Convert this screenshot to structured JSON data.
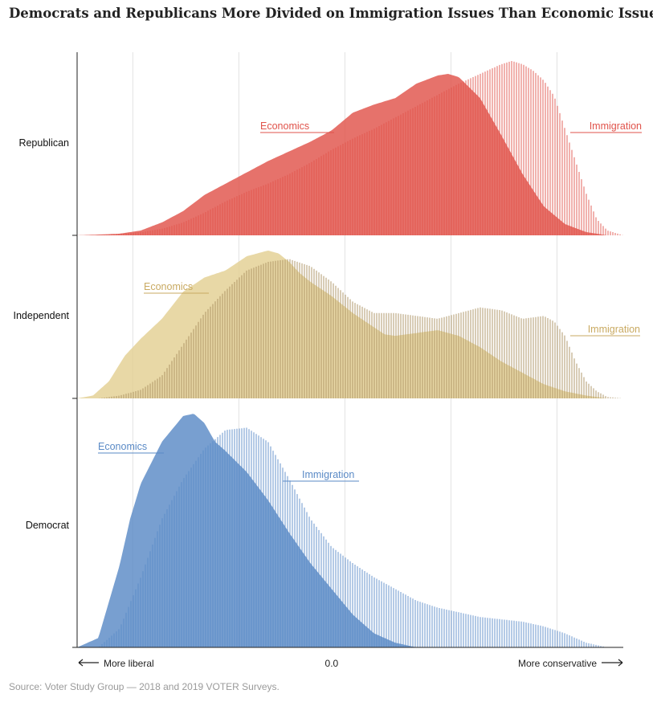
{
  "title": "Democrats and Republicans More Divided on Immigration Issues Than Economic Issues",
  "source": "Source: Voter Study Group — 2018 and 2019 VOTER Surveys.",
  "chart_data": {
    "type": "area",
    "xlabel_left": "More liberal",
    "xlabel_right": "More conservative",
    "xlim": [
      -2.4,
      2.75
    ],
    "x_tick_labels": [
      {
        "x": 0.0,
        "label": "0.0"
      }
    ],
    "gridlines_x": [
      -1.875,
      -0.875,
      0.125,
      1.125,
      2.125
    ],
    "grid": true,
    "panels": [
      {
        "group": "Republican",
        "color": "#e0534b",
        "series": [
          {
            "name": "Economics",
            "style": "filled",
            "x": [
              -2.4,
              -2.0,
              -1.8,
              -1.6,
              -1.4,
              -1.2,
              -1.0,
              -0.8,
              -0.6,
              -0.4,
              -0.2,
              0.0,
              0.2,
              0.4,
              0.6,
              0.8,
              1.0,
              1.1,
              1.2,
              1.4,
              1.6,
              1.8,
              2.0,
              2.2,
              2.4,
              2.6,
              2.75
            ],
            "y": [
              0.0,
              0.01,
              0.03,
              0.08,
              0.15,
              0.25,
              0.32,
              0.39,
              0.46,
              0.52,
              0.58,
              0.65,
              0.76,
              0.81,
              0.85,
              0.94,
              0.99,
              1.0,
              0.98,
              0.85,
              0.62,
              0.38,
              0.18,
              0.07,
              0.02,
              0.0,
              0.0
            ]
          },
          {
            "name": "Immigration",
            "style": "hatched",
            "x": [
              -2.4,
              -2.2,
              -2.0,
              -1.8,
              -1.6,
              -1.4,
              -1.2,
              -1.0,
              -0.8,
              -0.6,
              -0.4,
              -0.2,
              0.0,
              0.2,
              0.4,
              0.6,
              0.8,
              1.0,
              1.2,
              1.4,
              1.6,
              1.7,
              1.8,
              1.9,
              2.0,
              2.1,
              2.2,
              2.4,
              2.5,
              2.6,
              2.75
            ],
            "y": [
              0.0,
              0.0,
              0.01,
              0.02,
              0.04,
              0.08,
              0.14,
              0.21,
              0.27,
              0.32,
              0.38,
              0.45,
              0.53,
              0.6,
              0.66,
              0.73,
              0.8,
              0.87,
              0.94,
              1.0,
              1.06,
              1.08,
              1.06,
              1.02,
              0.96,
              0.86,
              0.66,
              0.26,
              0.1,
              0.03,
              0.0
            ]
          }
        ]
      },
      {
        "group": "Independent",
        "color": "#e3cf93",
        "color_text": "#c9aa62",
        "color_hatch": "#a88f5e",
        "series": [
          {
            "name": "Economics",
            "style": "filled",
            "x": [
              -2.4,
              -2.25,
              -2.1,
              -1.95,
              -1.8,
              -1.6,
              -1.4,
              -1.2,
              -1.0,
              -0.8,
              -0.6,
              -0.5,
              -0.4,
              -0.3,
              -0.2,
              0.0,
              0.2,
              0.4,
              0.5,
              0.6,
              0.8,
              1.0,
              1.2,
              1.4,
              1.6,
              1.8,
              2.0,
              2.2,
              2.4,
              2.6,
              2.75
            ],
            "y": [
              0.0,
              0.02,
              0.12,
              0.3,
              0.42,
              0.56,
              0.75,
              0.85,
              0.9,
              1.0,
              1.04,
              1.02,
              0.96,
              0.88,
              0.82,
              0.72,
              0.6,
              0.5,
              0.45,
              0.44,
              0.46,
              0.48,
              0.44,
              0.36,
              0.26,
              0.18,
              0.1,
              0.05,
              0.02,
              0.0,
              0.0
            ]
          },
          {
            "name": "Immigration",
            "style": "hatched",
            "x": [
              -2.4,
              -2.2,
              -2.0,
              -1.8,
              -1.6,
              -1.4,
              -1.2,
              -1.0,
              -0.8,
              -0.6,
              -0.4,
              -0.2,
              0.0,
              0.2,
              0.4,
              0.6,
              0.8,
              1.0,
              1.2,
              1.4,
              1.6,
              1.8,
              2.0,
              2.1,
              2.2,
              2.3,
              2.4,
              2.5,
              2.6,
              2.75
            ],
            "y": [
              0.0,
              0.0,
              0.02,
              0.06,
              0.16,
              0.38,
              0.6,
              0.76,
              0.9,
              0.96,
              0.98,
              0.93,
              0.82,
              0.68,
              0.6,
              0.6,
              0.58,
              0.56,
              0.6,
              0.64,
              0.62,
              0.56,
              0.58,
              0.54,
              0.44,
              0.26,
              0.12,
              0.05,
              0.01,
              0.0
            ]
          }
        ]
      },
      {
        "group": "Democrat",
        "color": "#5a8ac6",
        "series": [
          {
            "name": "Economics",
            "style": "filled",
            "x": [
              -2.4,
              -2.2,
              -2.0,
              -1.9,
              -1.8,
              -1.6,
              -1.4,
              -1.3,
              -1.2,
              -1.1,
              -1.0,
              -0.8,
              -0.6,
              -0.4,
              -0.2,
              0.0,
              0.2,
              0.4,
              0.6,
              0.8,
              1.0,
              1.2,
              1.4,
              2.75
            ],
            "y": [
              0.0,
              0.04,
              0.35,
              0.55,
              0.7,
              0.88,
              0.99,
              1.0,
              0.96,
              0.88,
              0.84,
              0.75,
              0.63,
              0.49,
              0.36,
              0.25,
              0.14,
              0.06,
              0.02,
              0.0,
              0.0,
              0.0,
              0.0,
              0.0
            ]
          },
          {
            "name": "Immigration",
            "style": "hatched",
            "x": [
              -2.4,
              -2.2,
              -2.0,
              -1.8,
              -1.6,
              -1.4,
              -1.2,
              -1.0,
              -0.8,
              -0.6,
              -0.4,
              -0.2,
              0.0,
              0.2,
              0.4,
              0.6,
              0.8,
              1.0,
              1.2,
              1.4,
              1.6,
              1.8,
              2.0,
              2.2,
              2.4,
              2.6,
              2.75
            ],
            "y": [
              0.0,
              0.0,
              0.08,
              0.3,
              0.55,
              0.72,
              0.85,
              0.93,
              0.94,
              0.88,
              0.72,
              0.55,
              0.43,
              0.36,
              0.3,
              0.25,
              0.2,
              0.17,
              0.15,
              0.13,
              0.12,
              0.11,
              0.09,
              0.06,
              0.02,
              0.0,
              0.0
            ]
          }
        ]
      }
    ]
  }
}
